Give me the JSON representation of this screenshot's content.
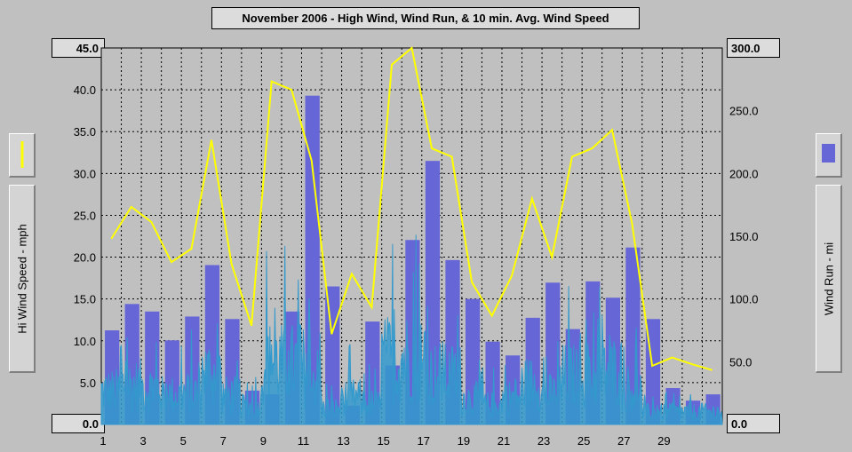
{
  "chart_data": {
    "type": "bar",
    "title": "November 2006 - High Wind, Wind Run, & 10 min. Avg. Wind Speed",
    "ylabel": "Hi Wind Speed - mph",
    "y2label": "Wind Run - mi",
    "ylim": [
      0,
      45
    ],
    "y2lim": [
      0,
      300
    ],
    "xlim": [
      1,
      31
    ],
    "left_ticks": [
      "0.0",
      "5.0",
      "10.0",
      "15.0",
      "20.0",
      "25.0",
      "30.0",
      "35.0",
      "40.0",
      "45.0"
    ],
    "right_ticks": [
      "0.0",
      "50.0",
      "100.0",
      "150.0",
      "200.0",
      "250.0",
      "300.0"
    ],
    "x_ticks": [
      "1",
      "3",
      "5",
      "7",
      "9",
      "11",
      "13",
      "15",
      "17",
      "19",
      "21",
      "23",
      "25",
      "27",
      "29"
    ],
    "grid": true,
    "series": [
      {
        "name": "",
        "kind": "bar",
        "axis": "right",
        "color": "#6666d6",
        "x": [
          1,
          2,
          3,
          4,
          5,
          6,
          7,
          8,
          9,
          10,
          11,
          12,
          13,
          14,
          15,
          16,
          17,
          18,
          19,
          20,
          21,
          22,
          23,
          24,
          25,
          26,
          27,
          28,
          29,
          30,
          31
        ],
        "values": [
          75,
          96,
          90,
          67,
          86,
          127,
          84,
          27,
          24,
          90,
          262,
          110,
          15,
          82,
          47,
          147,
          210,
          131,
          100,
          66,
          55,
          85,
          113,
          76,
          114,
          101,
          141,
          84,
          29,
          19,
          24
        ]
      },
      {
        "name": "",
        "kind": "line",
        "axis": "left",
        "color": "#ffff00",
        "x": [
          1,
          2,
          3,
          4,
          5,
          6,
          7,
          8,
          9,
          10,
          11,
          12,
          13,
          14,
          15,
          16,
          17,
          18,
          19,
          20,
          21,
          22,
          23,
          24,
          25,
          26,
          27,
          28,
          29,
          30,
          31
        ],
        "values": [
          22.2,
          26.0,
          24.2,
          19.4,
          21.0,
          34.0,
          19.2,
          11.8,
          41.0,
          40.0,
          31.5,
          10.8,
          18.0,
          14.0,
          43.0,
          45.0,
          33.0,
          32.0,
          17.0,
          13.0,
          17.8,
          27.0,
          20.0,
          32.0,
          33.0,
          35.2,
          24.0,
          7.0,
          8.0,
          7.2,
          6.5
        ]
      }
    ]
  },
  "avg_series_color": "#3399cc",
  "legend": {
    "left_swatch_color": "#ffff00",
    "right_swatch_color": "#6666d6"
  }
}
